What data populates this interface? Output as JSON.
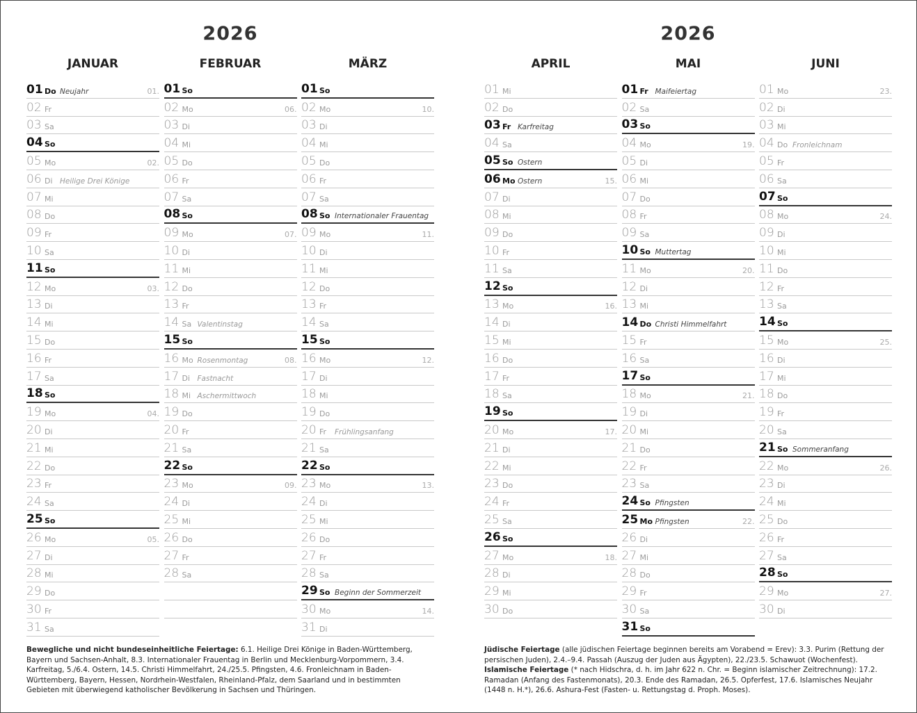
{
  "pages": [
    {
      "year": "2026",
      "months": [
        {
          "name": "JANUAR",
          "days": [
            {
              "d": "01",
              "w": "Do",
              "n": "Neujahr",
              "k": "01.",
              "b": true
            },
            {
              "d": "02",
              "w": "Fr"
            },
            {
              "d": "03",
              "w": "Sa"
            },
            {
              "d": "04",
              "w": "So"
            },
            {
              "d": "05",
              "w": "Mo",
              "k": "02."
            },
            {
              "d": "06",
              "w": "Di",
              "n": "Heilige Drei Könige"
            },
            {
              "d": "07",
              "w": "Mi"
            },
            {
              "d": "08",
              "w": "Do"
            },
            {
              "d": "09",
              "w": "Fr"
            },
            {
              "d": "10",
              "w": "Sa"
            },
            {
              "d": "11",
              "w": "So"
            },
            {
              "d": "12",
              "w": "Mo",
              "k": "03."
            },
            {
              "d": "13",
              "w": "Di"
            },
            {
              "d": "14",
              "w": "Mi"
            },
            {
              "d": "15",
              "w": "Do"
            },
            {
              "d": "16",
              "w": "Fr"
            },
            {
              "d": "17",
              "w": "Sa"
            },
            {
              "d": "18",
              "w": "So"
            },
            {
              "d": "19",
              "w": "Mo",
              "k": "04."
            },
            {
              "d": "20",
              "w": "Di"
            },
            {
              "d": "21",
              "w": "Mi"
            },
            {
              "d": "22",
              "w": "Do"
            },
            {
              "d": "23",
              "w": "Fr"
            },
            {
              "d": "24",
              "w": "Sa"
            },
            {
              "d": "25",
              "w": "So"
            },
            {
              "d": "26",
              "w": "Mo",
              "k": "05."
            },
            {
              "d": "27",
              "w": "Di"
            },
            {
              "d": "28",
              "w": "Mi"
            },
            {
              "d": "29",
              "w": "Do"
            },
            {
              "d": "30",
              "w": "Fr"
            },
            {
              "d": "31",
              "w": "Sa"
            }
          ]
        },
        {
          "name": "FEBRUAR",
          "days": [
            {
              "d": "01",
              "w": "So"
            },
            {
              "d": "02",
              "w": "Mo",
              "k": "06."
            },
            {
              "d": "03",
              "w": "Di"
            },
            {
              "d": "04",
              "w": "Mi"
            },
            {
              "d": "05",
              "w": "Do"
            },
            {
              "d": "06",
              "w": "Fr"
            },
            {
              "d": "07",
              "w": "Sa"
            },
            {
              "d": "08",
              "w": "So"
            },
            {
              "d": "09",
              "w": "Mo",
              "k": "07."
            },
            {
              "d": "10",
              "w": "Di"
            },
            {
              "d": "11",
              "w": "Mi"
            },
            {
              "d": "12",
              "w": "Do"
            },
            {
              "d": "13",
              "w": "Fr"
            },
            {
              "d": "14",
              "w": "Sa",
              "n": "Valentinstag"
            },
            {
              "d": "15",
              "w": "So"
            },
            {
              "d": "16",
              "w": "Mo",
              "n": "Rosenmontag",
              "k": "08."
            },
            {
              "d": "17",
              "w": "Di",
              "n": "Fastnacht"
            },
            {
              "d": "18",
              "w": "Mi",
              "n": "Aschermittwoch"
            },
            {
              "d": "19",
              "w": "Do"
            },
            {
              "d": "20",
              "w": "Fr"
            },
            {
              "d": "21",
              "w": "Sa"
            },
            {
              "d": "22",
              "w": "So"
            },
            {
              "d": "23",
              "w": "Mo",
              "k": "09."
            },
            {
              "d": "24",
              "w": "Di"
            },
            {
              "d": "25",
              "w": "Mi"
            },
            {
              "d": "26",
              "w": "Do"
            },
            {
              "d": "27",
              "w": "Fr"
            },
            {
              "d": "28",
              "w": "Sa"
            }
          ]
        },
        {
          "name": "MÄRZ",
          "days": [
            {
              "d": "01",
              "w": "So"
            },
            {
              "d": "02",
              "w": "Mo",
              "k": "10."
            },
            {
              "d": "03",
              "w": "Di"
            },
            {
              "d": "04",
              "w": "Mi"
            },
            {
              "d": "05",
              "w": "Do"
            },
            {
              "d": "06",
              "w": "Fr"
            },
            {
              "d": "07",
              "w": "Sa"
            },
            {
              "d": "08",
              "w": "So",
              "n": "Internationaler Frauentag"
            },
            {
              "d": "09",
              "w": "Mo",
              "k": "11."
            },
            {
              "d": "10",
              "w": "Di"
            },
            {
              "d": "11",
              "w": "Mi"
            },
            {
              "d": "12",
              "w": "Do"
            },
            {
              "d": "13",
              "w": "Fr"
            },
            {
              "d": "14",
              "w": "Sa"
            },
            {
              "d": "15",
              "w": "So"
            },
            {
              "d": "16",
              "w": "Mo",
              "k": "12."
            },
            {
              "d": "17",
              "w": "Di"
            },
            {
              "d": "18",
              "w": "Mi"
            },
            {
              "d": "19",
              "w": "Do"
            },
            {
              "d": "20",
              "w": "Fr",
              "n": "Frühlingsanfang"
            },
            {
              "d": "21",
              "w": "Sa"
            },
            {
              "d": "22",
              "w": "So"
            },
            {
              "d": "23",
              "w": "Mo",
              "k": "13."
            },
            {
              "d": "24",
              "w": "Di"
            },
            {
              "d": "25",
              "w": "Mi"
            },
            {
              "d": "26",
              "w": "Do"
            },
            {
              "d": "27",
              "w": "Fr"
            },
            {
              "d": "28",
              "w": "Sa"
            },
            {
              "d": "29",
              "w": "So",
              "n": "Beginn der Sommerzeit"
            },
            {
              "d": "30",
              "w": "Mo",
              "k": "14."
            },
            {
              "d": "31",
              "w": "Di"
            }
          ]
        }
      ],
      "footnote": {
        "lead": "Bewegliche und nicht bundeseinheitliche Feiertage:",
        "text": " 6.1. Heilige Drei Könige in Baden-Württemberg, Bayern und Sachsen-Anhalt, 8.3. Internationaler Frauentag in Berlin und Mecklenburg-Vorpommern, 3.4. Karfreitag, 5./6.4. Ostern, 14.5. Christi Himmelfahrt, 24./25.5. Pfingsten, 4.6. Fronleichnam in Baden-Württemberg, Bayern, Hessen, Nordrhein-Westfalen, Rheinland-Pfalz, dem Saarland und in bestimmten Gebieten mit überwiegend katholischer Bevölkerung in Sachsen und Thüringen."
      }
    },
    {
      "year": "2026",
      "months": [
        {
          "name": "APRIL",
          "days": [
            {
              "d": "01",
              "w": "Mi"
            },
            {
              "d": "02",
              "w": "Do"
            },
            {
              "d": "03",
              "w": "Fr",
              "n": "Karfreitag",
              "b": true
            },
            {
              "d": "04",
              "w": "Sa"
            },
            {
              "d": "05",
              "w": "So",
              "n": "Ostern"
            },
            {
              "d": "06",
              "w": "Mo",
              "n": "Ostern",
              "k": "15.",
              "b": true
            },
            {
              "d": "07",
              "w": "Di"
            },
            {
              "d": "08",
              "w": "Mi"
            },
            {
              "d": "09",
              "w": "Do"
            },
            {
              "d": "10",
              "w": "Fr"
            },
            {
              "d": "11",
              "w": "Sa"
            },
            {
              "d": "12",
              "w": "So"
            },
            {
              "d": "13",
              "w": "Mo",
              "k": "16."
            },
            {
              "d": "14",
              "w": "Di"
            },
            {
              "d": "15",
              "w": "Mi"
            },
            {
              "d": "16",
              "w": "Do"
            },
            {
              "d": "17",
              "w": "Fr"
            },
            {
              "d": "18",
              "w": "Sa"
            },
            {
              "d": "19",
              "w": "So"
            },
            {
              "d": "20",
              "w": "Mo",
              "k": "17."
            },
            {
              "d": "21",
              "w": "Di"
            },
            {
              "d": "22",
              "w": "Mi"
            },
            {
              "d": "23",
              "w": "Do"
            },
            {
              "d": "24",
              "w": "Fr"
            },
            {
              "d": "25",
              "w": "Sa"
            },
            {
              "d": "26",
              "w": "So"
            },
            {
              "d": "27",
              "w": "Mo",
              "k": "18."
            },
            {
              "d": "28",
              "w": "Di"
            },
            {
              "d": "29",
              "w": "Mi"
            },
            {
              "d": "30",
              "w": "Do"
            }
          ]
        },
        {
          "name": "MAI",
          "days": [
            {
              "d": "01",
              "w": "Fr",
              "n": "Maifeiertag",
              "b": true
            },
            {
              "d": "02",
              "w": "Sa"
            },
            {
              "d": "03",
              "w": "So"
            },
            {
              "d": "04",
              "w": "Mo",
              "k": "19."
            },
            {
              "d": "05",
              "w": "Di"
            },
            {
              "d": "06",
              "w": "Mi"
            },
            {
              "d": "07",
              "w": "Do"
            },
            {
              "d": "08",
              "w": "Fr"
            },
            {
              "d": "09",
              "w": "Sa"
            },
            {
              "d": "10",
              "w": "So",
              "n": "Muttertag"
            },
            {
              "d": "11",
              "w": "Mo",
              "k": "20."
            },
            {
              "d": "12",
              "w": "Di"
            },
            {
              "d": "13",
              "w": "Mi"
            },
            {
              "d": "14",
              "w": "Do",
              "n": "Christi Himmelfahrt",
              "b": true
            },
            {
              "d": "15",
              "w": "Fr"
            },
            {
              "d": "16",
              "w": "Sa"
            },
            {
              "d": "17",
              "w": "So"
            },
            {
              "d": "18",
              "w": "Mo",
              "k": "21."
            },
            {
              "d": "19",
              "w": "Di"
            },
            {
              "d": "20",
              "w": "Mi"
            },
            {
              "d": "21",
              "w": "Do"
            },
            {
              "d": "22",
              "w": "Fr"
            },
            {
              "d": "23",
              "w": "Sa"
            },
            {
              "d": "24",
              "w": "So",
              "n": "Pfingsten"
            },
            {
              "d": "25",
              "w": "Mo",
              "n": "Pfingsten",
              "k": "22.",
              "b": true
            },
            {
              "d": "26",
              "w": "Di"
            },
            {
              "d": "27",
              "w": "Mi"
            },
            {
              "d": "28",
              "w": "Do"
            },
            {
              "d": "29",
              "w": "Fr"
            },
            {
              "d": "30",
              "w": "Sa"
            },
            {
              "d": "31",
              "w": "So"
            }
          ]
        },
        {
          "name": "JUNI",
          "days": [
            {
              "d": "01",
              "w": "Mo",
              "k": "23."
            },
            {
              "d": "02",
              "w": "Di"
            },
            {
              "d": "03",
              "w": "Mi"
            },
            {
              "d": "04",
              "w": "Do",
              "n": "Fronleichnam"
            },
            {
              "d": "05",
              "w": "Fr"
            },
            {
              "d": "06",
              "w": "Sa"
            },
            {
              "d": "07",
              "w": "So"
            },
            {
              "d": "08",
              "w": "Mo",
              "k": "24."
            },
            {
              "d": "09",
              "w": "Di"
            },
            {
              "d": "10",
              "w": "Mi"
            },
            {
              "d": "11",
              "w": "Do"
            },
            {
              "d": "12",
              "w": "Fr"
            },
            {
              "d": "13",
              "w": "Sa"
            },
            {
              "d": "14",
              "w": "So"
            },
            {
              "d": "15",
              "w": "Mo",
              "k": "25."
            },
            {
              "d": "16",
              "w": "Di"
            },
            {
              "d": "17",
              "w": "Mi"
            },
            {
              "d": "18",
              "w": "Do"
            },
            {
              "d": "19",
              "w": "Fr"
            },
            {
              "d": "20",
              "w": "Sa"
            },
            {
              "d": "21",
              "w": "So",
              "n": "Sommeranfang"
            },
            {
              "d": "22",
              "w": "Mo",
              "k": "26."
            },
            {
              "d": "23",
              "w": "Di"
            },
            {
              "d": "24",
              "w": "Mi"
            },
            {
              "d": "25",
              "w": "Do"
            },
            {
              "d": "26",
              "w": "Fr"
            },
            {
              "d": "27",
              "w": "Sa"
            },
            {
              "d": "28",
              "w": "So"
            },
            {
              "d": "29",
              "w": "Mo",
              "k": "27."
            },
            {
              "d": "30",
              "w": "Di"
            }
          ]
        }
      ],
      "footnote": {
        "lead": "Jüdische Feiertage",
        "text": " (alle jüdischen Feiertage beginnen bereits am Vorabend = Erev): 3.3. Purim (Rettung der persischen Juden), 2.4.–9.4. Passah (Auszug der Juden aus Ägypten), 22./23.5. Schawuot (Wochenfest).",
        "lead2": "Islamische Feiertage",
        "text2": " (* nach Hidschra, d. h. im Jahr 622 n. Chr. = Beginn islamischer Zeitrechnung): 17.2. Ramadan (Anfang des Fastenmonats), 20.3. Ende des Ramadan, 26.5. Opferfest, 17.6. Islamisches Neujahr (1448 n. H.*), 26.6. Ashura-Fest (Fasten- u. Rettungstag d. Proph. Moses)."
      }
    }
  ]
}
